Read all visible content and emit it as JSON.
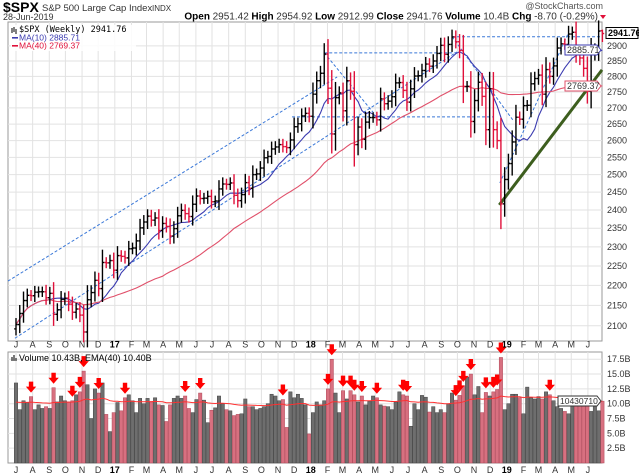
{
  "header": {
    "symbol": "$SPX",
    "name": "S&P 500 Large Cap Index",
    "exchange": "INDX",
    "date": "28-Jun-2019",
    "watermark": "@StockCharts.com",
    "open_label": "Open",
    "open": "2951.42",
    "high_label": "High",
    "high": "2954.92",
    "low_label": "Low",
    "low": "2912.99",
    "close_label": "Close",
    "close": "2941.76",
    "volume_label": "Volume",
    "volume": "10.4B",
    "chg_label": "Chg",
    "chg": "-8.70 (-0.29%)",
    "chg_direction": "down"
  },
  "legend": {
    "price": "$SPX (Weekly) 2941.76",
    "ma10": "MA(10) 2885.71",
    "ma40": "MA(40) 2769.37",
    "volume": "Volume 10.43B, EMA(40) 10.40B"
  },
  "right_labels": {
    "close": "2941.76",
    "ma10": "2885.71",
    "ma40": "2769.37",
    "volume": "10430710"
  },
  "colors": {
    "up_bar": "#000000",
    "down_bar": "#e0103a",
    "ma10": "#3b3bb0",
    "ma40": "#e0506a",
    "volume_up": "#6e6e6e",
    "volume_down": "#d87080",
    "ema40": "#ff3030",
    "trendline_dashed": "#3a78d8",
    "trendline_solid": "#3d5e1e",
    "arrow": "#ff0000"
  },
  "chart_data": [
    {
      "type": "bar",
      "style": "ohlc",
      "frequency": "weekly",
      "scale": "log",
      "grid": true,
      "ylim": [
        2080,
        2960
      ],
      "y_tick_labels": [
        "2100",
        "2150",
        "2200",
        "2250",
        "2300",
        "2350",
        "2400",
        "2450",
        "2500",
        "2550",
        "2600",
        "2650",
        "2700",
        "2750",
        "2800",
        "2850",
        "2900"
      ],
      "x_tick_labels": [
        "J",
        "A",
        "S",
        "O",
        "N",
        "D",
        "17",
        "F",
        "M",
        "A",
        "M",
        "J",
        "J",
        "A",
        "S",
        "O",
        "N",
        "D",
        "18",
        "F",
        "M",
        "A",
        "M",
        "J",
        "J",
        "A",
        "S",
        "O",
        "N",
        "D",
        "19",
        "F",
        "M",
        "A",
        "M",
        "J"
      ],
      "first_week": "2016-07-01",
      "last_bar": {
        "open": 2951.42,
        "high": 2954.92,
        "low": 2912.99,
        "close": 2941.76
      },
      "closes": [
        2103,
        2130,
        2162,
        2175,
        2174,
        2183,
        2184,
        2184,
        2169,
        2180,
        2128,
        2139,
        2165,
        2168,
        2153,
        2133,
        2141,
        2126,
        2085,
        2164,
        2182,
        2213,
        2192,
        2259,
        2258,
        2264,
        2239,
        2277,
        2275,
        2271,
        2295,
        2297,
        2316,
        2351,
        2367,
        2383,
        2372,
        2378,
        2344,
        2363,
        2355,
        2329,
        2349,
        2384,
        2399,
        2390,
        2382,
        2416,
        2439,
        2432,
        2433,
        2438,
        2423,
        2425,
        2459,
        2473,
        2472,
        2476,
        2441,
        2426,
        2443,
        2477,
        2461,
        2500,
        2502,
        2519,
        2549,
        2553,
        2575,
        2581,
        2588,
        2582,
        2579,
        2602,
        2642,
        2651,
        2675,
        2683,
        2674,
        2743,
        2786,
        2810,
        2873,
        2762,
        2620,
        2732,
        2747,
        2691,
        2786,
        2752,
        2588,
        2641,
        2604,
        2656,
        2670,
        2670,
        2663,
        2728,
        2713,
        2721,
        2735,
        2779,
        2780,
        2755,
        2718,
        2760,
        2801,
        2802,
        2819,
        2840,
        2833,
        2850,
        2875,
        2902,
        2872,
        2905,
        2930,
        2914,
        2885,
        2767,
        2768,
        2658,
        2723,
        2781,
        2736,
        2633,
        2760,
        2633,
        2600,
        2417,
        2486,
        2532,
        2596,
        2671,
        2665,
        2707,
        2708,
        2776,
        2793,
        2804,
        2743,
        2822,
        2800,
        2834,
        2893,
        2907,
        2905,
        2940,
        2946,
        2881,
        2860,
        2826,
        2752,
        2873,
        2887,
        2950,
        2941.76
      ],
      "series": [
        {
          "name": "MA(10)",
          "period": 10,
          "last": 2885.71
        },
        {
          "name": "MA(40)",
          "period": 40,
          "last": 2769.37
        }
      ],
      "annotations": [
        {
          "style": "dashed",
          "from": [
            "2016-06-16",
            2211
          ],
          "to": [
            "2018-02-19",
            2798
          ]
        },
        {
          "style": "dashed",
          "from": [
            "2016-06-29",
            2070
          ],
          "to": [
            "2018-09-30",
            2880
          ]
        },
        {
          "style": "dashed",
          "from": [
            "2018-01-26",
            2877
          ],
          "to": [
            "2018-09-28",
            2877
          ]
        },
        {
          "style": "dashed",
          "from": [
            "2018-09-21",
            2931
          ],
          "to": [
            "2019-06-28",
            2931
          ]
        },
        {
          "style": "dashed",
          "from": [
            "2017-11-27",
            2672
          ],
          "to": [
            "2018-12-06",
            2672
          ]
        },
        {
          "style": "dashed",
          "from": [
            "2018-01-26",
            2877
          ],
          "to": [
            "2018-04-30",
            2680
          ]
        },
        {
          "style": "dashed",
          "from": [
            "2018-09-21",
            2931
          ],
          "to": [
            "2019-01-12",
            2663
          ]
        },
        {
          "style": "dashed",
          "from": [
            "2018-12-19",
            2476
          ],
          "to": [
            "2019-04-26",
            2945
          ]
        },
        {
          "style": "solid",
          "from": [
            "2018-12-18",
            2414
          ],
          "to": [
            "2019-06-28",
            2821
          ]
        }
      ]
    },
    {
      "type": "bar",
      "title": "Volume",
      "unit": "B",
      "ylim": [
        0,
        18.5
      ],
      "y_tick_labels": [
        "2.5B",
        "5.0B",
        "7.5B",
        "10.0B",
        "12.5B",
        "15.0B",
        "17.5B"
      ],
      "series": [
        {
          "name": "EMA(40)",
          "period": 40,
          "last": 10.4
        }
      ],
      "values": [
        13.5,
        9,
        10.5,
        10.2,
        11.2,
        9,
        9.8,
        9.2,
        9.5,
        9.2,
        12.7,
        10.3,
        11.3,
        10.5,
        10.3,
        10.5,
        11.5,
        12.0,
        15.5,
        13.2,
        7.5,
        12.5,
        11.8,
        13.5,
        8.2,
        5.3,
        8.5,
        10.2,
        8.8,
        11.0,
        11.5,
        10.5,
        8.5,
        10.9,
        10.0,
        10.9,
        10.3,
        11.0,
        9.8,
        9.7,
        7.0,
        9.8,
        10.9,
        11.3,
        10.9,
        11.3,
        9.2,
        8.5,
        10.7,
        11.8,
        10.6,
        6.8,
        8.9,
        9.3,
        11.3,
        10.0,
        9.0,
        8.8,
        8.0,
        8.2,
        8.3,
        10.8,
        9.5,
        9.5,
        9.0,
        9.2,
        9.5,
        10.0,
        11.6,
        11.3,
        10.5,
        10.7,
        6.0,
        12.0,
        11.0,
        11.6,
        10.9,
        9.8,
        4.9,
        8.5,
        10.3,
        9.8,
        10.5,
        12.5,
        17.5,
        11.8,
        8.5,
        12.2,
        10.8,
        12.2,
        11.5,
        10.3,
        11.3,
        9.8,
        10.4,
        11.3,
        11.0,
        9.8,
        9.6,
        9.5,
        9.0,
        10.3,
        12.0,
        11.5,
        11.3,
        6.2,
        10.0,
        9.0,
        11.4,
        11.1,
        8.6,
        9.5,
        8.5,
        9.0,
        8.5,
        10.0,
        11.8,
        10.6,
        11.4,
        13.0,
        14.5,
        15.0,
        11.5,
        12.9,
        8.5,
        11.9,
        11.3,
        12.0,
        12.4,
        17.8,
        9.0,
        10.0,
        11.6,
        11.6,
        11.0,
        8.3,
        12.8,
        11.0,
        10.8,
        11.2,
        10.8,
        12.0,
        11.5,
        10.5,
        9.5,
        9.2,
        8.7,
        8.3,
        10.3,
        10.5,
        10.3,
        10.0,
        9.6,
        8.7,
        10.6,
        8.8,
        10.43
      ],
      "markers": "red down-arrows over high-volume down weeks"
    }
  ]
}
